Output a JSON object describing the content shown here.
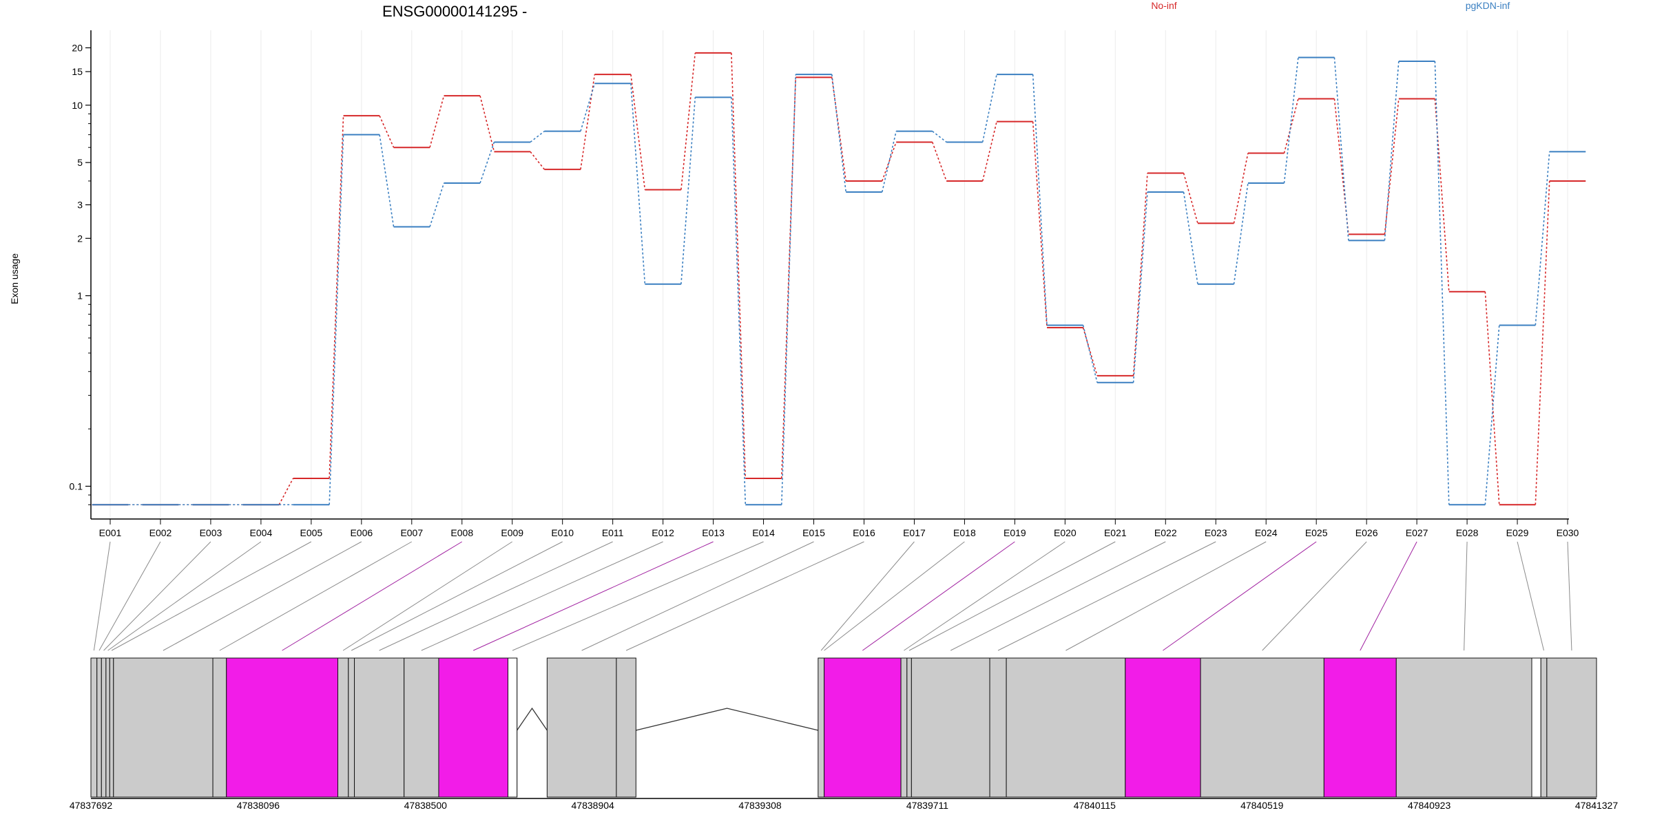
{
  "chart_data": {
    "type": "line",
    "title": "ENSG00000141295 -",
    "ylabel": "Exon usage",
    "xlabel": "",
    "y_scale": "log",
    "ylim": [
      0.075,
      22
    ],
    "y_ticks": [
      0.1,
      1,
      2,
      3,
      5,
      10,
      15,
      20
    ],
    "legend_placement": "top",
    "grid": "vertical",
    "categories": [
      "E001",
      "E002",
      "E003",
      "E004",
      "E005",
      "E006",
      "E007",
      "E008",
      "E009",
      "E010",
      "E011",
      "E012",
      "E013",
      "E014",
      "E015",
      "E016",
      "E017",
      "E018",
      "E019",
      "E020",
      "E021",
      "E022",
      "E023",
      "E024",
      "E025",
      "E026",
      "E027",
      "E028",
      "E029",
      "E030"
    ],
    "highlighted_exons": [
      "E008",
      "E013",
      "E019",
      "E025",
      "E027"
    ],
    "series": [
      {
        "name": "No-inf",
        "color": "#d62728",
        "values": [
          0.08,
          0.08,
          0.08,
          0.08,
          0.11,
          8.8,
          6.0,
          11.2,
          5.7,
          4.6,
          14.5,
          3.6,
          18.8,
          0.11,
          14.0,
          4.0,
          6.4,
          4.0,
          8.2,
          0.68,
          0.38,
          4.4,
          2.4,
          5.6,
          10.8,
          2.1,
          10.8,
          1.05,
          0.08,
          4.0
        ]
      },
      {
        "name": "pgKDN-inf",
        "color": "#3a7fc1",
        "values": [
          0.08,
          0.08,
          0.08,
          0.08,
          0.08,
          7.0,
          2.3,
          3.9,
          6.4,
          7.3,
          13.0,
          1.15,
          11.0,
          0.08,
          14.5,
          3.5,
          7.3,
          6.4,
          14.5,
          0.7,
          0.35,
          3.5,
          1.15,
          3.9,
          17.8,
          1.95,
          17.0,
          0.08,
          0.7,
          5.7
        ]
      }
    ],
    "gene_model": {
      "coordinate_ticks": [
        "47837692",
        "47838096",
        "47838500",
        "47838904",
        "47839308",
        "47839711",
        "47840115",
        "47840519",
        "47840923",
        "47841327"
      ],
      "exon_blocks": [
        {
          "label": "E001",
          "start": 0.0,
          "end": 0.004
        },
        {
          "label": "E002",
          "start": 0.004,
          "end": 0.007
        },
        {
          "label": "E003",
          "start": 0.007,
          "end": 0.01
        },
        {
          "label": "E004",
          "start": 0.01,
          "end": 0.0125
        },
        {
          "label": "E005",
          "start": 0.0125,
          "end": 0.015
        },
        {
          "label": "E006",
          "start": 0.015,
          "end": 0.081
        },
        {
          "label": "E007",
          "start": 0.081,
          "end": 0.09
        },
        {
          "label": "E008",
          "start": 0.09,
          "end": 0.164
        },
        {
          "label": "E009",
          "start": 0.164,
          "end": 0.171
        },
        {
          "label": "E010",
          "start": 0.171,
          "end": 0.175
        },
        {
          "label": "E011",
          "start": 0.175,
          "end": 0.208
        },
        {
          "label": "E012",
          "start": 0.208,
          "end": 0.231
        },
        {
          "label": "E013",
          "start": 0.231,
          "end": 0.277
        },
        {
          "label": "E014",
          "start": 0.277,
          "end": 0.283
        },
        {
          "label": "E015",
          "start": 0.303,
          "end": 0.349
        },
        {
          "label": "E016",
          "start": 0.349,
          "end": 0.362
        },
        {
          "label": "E017",
          "start": 0.483,
          "end": 0.487
        },
        {
          "label": "E018",
          "start": 0.487,
          "end": 0.487
        },
        {
          "label": "E019",
          "start": 0.487,
          "end": 0.538
        },
        {
          "label": "E020",
          "start": 0.538,
          "end": 0.542
        },
        {
          "label": "E021",
          "start": 0.542,
          "end": 0.545
        },
        {
          "label": "E022",
          "start": 0.545,
          "end": 0.597
        },
        {
          "label": "E023",
          "start": 0.597,
          "end": 0.608
        },
        {
          "label": "E024",
          "start": 0.608,
          "end": 0.687
        },
        {
          "label": "E025",
          "start": 0.687,
          "end": 0.737
        },
        {
          "label": "E026",
          "start": 0.737,
          "end": 0.819
        },
        {
          "label": "E027",
          "start": 0.819,
          "end": 0.867
        },
        {
          "label": "E028",
          "start": 0.867,
          "end": 0.957
        },
        {
          "label": "E029",
          "start": 0.963,
          "end": 0.967
        },
        {
          "label": "E030",
          "start": 0.967,
          "end": 1.0
        }
      ],
      "introns": [
        [
          0.283,
          0.303
        ],
        [
          0.362,
          0.483
        ],
        [
          0.957,
          0.963
        ]
      ]
    }
  }
}
